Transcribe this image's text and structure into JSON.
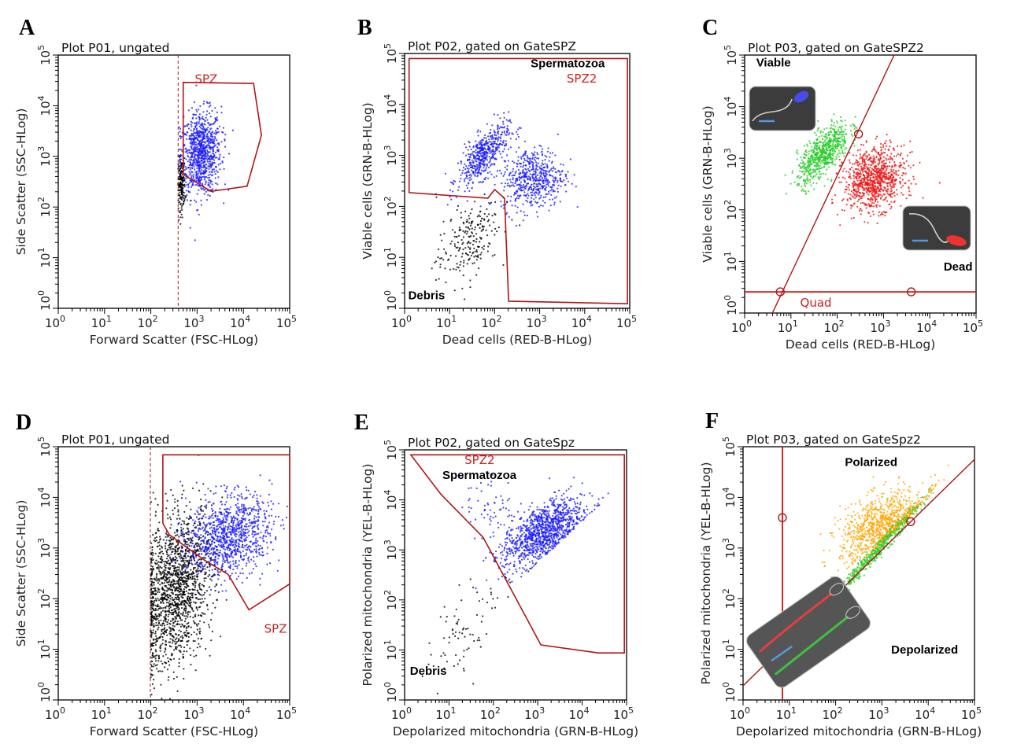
{
  "figure": {
    "panel_letters": [
      "A",
      "B",
      "C",
      "D",
      "E",
      "F"
    ]
  },
  "chart_data": [
    {
      "type": "scatter",
      "id": "A",
      "title": "Plot P01, ungated",
      "xlabel": "Forward Scatter (FSC-HLog)",
      "ylabel": "Side Scatter (SSC-HLog)",
      "xlim_log10": [
        0,
        5
      ],
      "ylim_log10": [
        0,
        5
      ],
      "tick_base": "10",
      "tick_exponents": [
        0,
        1,
        2,
        3,
        4,
        5
      ],
      "clusters": [
        {
          "color": "#1a1aff",
          "n": 900,
          "cx": 3.08,
          "cy": 3.05,
          "sx": 0.22,
          "sy": 0.42,
          "rho": 0.1,
          "xmin": 2.62
        },
        {
          "color": "#000000",
          "n": 160,
          "cx": 2.66,
          "cy": 2.45,
          "sx": 0.04,
          "sy": 0.25,
          "rho": 0,
          "xmin": 2.59
        }
      ],
      "gates": [
        {
          "name": "SPZ",
          "points": [
            [
              2.7,
              4.46
            ],
            [
              4.22,
              4.44
            ],
            [
              4.39,
              3.42
            ],
            [
              4.08,
              2.41
            ],
            [
              3.3,
              2.31
            ],
            [
              2.7,
              2.64
            ]
          ]
        }
      ],
      "vlines_dashed": [
        2.59
      ],
      "gate_labels": [
        {
          "text": "SPZ",
          "x": 2.95,
          "y": 4.45,
          "kind": "gate"
        }
      ]
    },
    {
      "type": "scatter",
      "id": "B",
      "title": "Plot P02, gated on GateSPZ",
      "xlabel": "Dead cells (RED-B-HLog)",
      "ylabel": "Viable cells (GRN-B-HLog)",
      "xlim_log10": [
        0,
        5
      ],
      "ylim_log10": [
        0,
        5
      ],
      "tick_base": "10",
      "tick_exponents": [
        0,
        1,
        2,
        3,
        4,
        5
      ],
      "clusters": [
        {
          "color": "#1a1aff",
          "n": 500,
          "cx": 1.75,
          "cy": 3.0,
          "sx": 0.28,
          "sy": 0.3,
          "rho": 0.7
        },
        {
          "color": "#1a1aff",
          "n": 550,
          "cx": 2.85,
          "cy": 2.55,
          "sx": 0.35,
          "sy": 0.3,
          "rho": 0.1
        },
        {
          "color": "#000000",
          "n": 220,
          "cx": 1.4,
          "cy": 1.3,
          "sx": 0.35,
          "sy": 0.42,
          "rho": 0.5
        }
      ],
      "gates": [
        {
          "name": "SPZ2",
          "points": [
            [
              0.1,
              4.9
            ],
            [
              4.95,
              4.9
            ],
            [
              4.95,
              0.09
            ],
            [
              2.31,
              0.14
            ],
            [
              2.22,
              2.16
            ],
            [
              2.0,
              2.33
            ],
            [
              1.85,
              2.16
            ],
            [
              0.1,
              2.27
            ]
          ]
        }
      ],
      "gate_labels": [
        {
          "text": "Spermatozoa",
          "x": 2.8,
          "y": 4.73,
          "kind": "bold"
        },
        {
          "text": "SPZ2",
          "x": 3.6,
          "y": 4.43,
          "kind": "gate"
        },
        {
          "text": "Debris",
          "x": 0.08,
          "y": 0.18,
          "kind": "bold"
        }
      ]
    },
    {
      "type": "scatter",
      "id": "C",
      "title": "Plot P03, gated on GateSPZ2",
      "xlabel": "Dead cells (RED-B-HLog)",
      "ylabel": "Viable cells (GRN-B-HLog)",
      "xlim_log10": [
        0,
        5
      ],
      "ylim_log10": [
        0,
        5
      ],
      "tick_base": "10",
      "tick_exponents": [
        0,
        1,
        2,
        3,
        4,
        5
      ],
      "clusters": [
        {
          "color": "#22cc22",
          "n": 650,
          "cx": 1.7,
          "cy": 3.1,
          "sx": 0.28,
          "sy": 0.3,
          "rho": 0.7
        },
        {
          "color": "#ee1111",
          "n": 900,
          "cx": 2.8,
          "cy": 2.6,
          "sx": 0.33,
          "sy": 0.3,
          "rho": 0.15
        }
      ],
      "quadrant": {
        "line_from": [
          0.6,
          0
        ],
        "line_to": [
          3.23,
          5
        ],
        "h_y": 0.41,
        "markers": [
          [
            0.77,
            0.41
          ],
          [
            2.46,
            3.47
          ],
          [
            3.6,
            0.41
          ]
        ]
      },
      "gate_labels": [
        {
          "text": "Viable",
          "x": 0.25,
          "y": 4.78,
          "kind": "bold"
        },
        {
          "text": "Dead",
          "x": 4.3,
          "y": 0.82,
          "kind": "bold"
        },
        {
          "text": "Quad",
          "x": 1.2,
          "y": 0.12,
          "kind": "gate"
        }
      ],
      "insets": [
        "viable-sperm-image-blue",
        "dead-sperm-image-red"
      ]
    },
    {
      "type": "scatter",
      "id": "D",
      "title": "Plot P01, ungated",
      "xlabel": "Forward Scatter (FSC-HLog)",
      "ylabel": "Side Scatter (SSC-HLog)",
      "xlim_log10": [
        0,
        5
      ],
      "ylim_log10": [
        0,
        5
      ],
      "tick_base": "10",
      "tick_exponents": [
        0,
        1,
        2,
        3,
        4,
        5
      ],
      "clusters": [
        {
          "color": "#000000",
          "n": 1600,
          "cx": 2.55,
          "cy": 2.2,
          "sx": 0.4,
          "sy": 0.75,
          "rho": 0.3,
          "xmin": 2.0
        },
        {
          "color": "#1a1aff",
          "n": 1000,
          "cx": 3.7,
          "cy": 3.25,
          "sx": 0.45,
          "sy": 0.4,
          "rho": 0.2,
          "xmin": 2.3
        }
      ],
      "gates": [
        {
          "name": "SPZ",
          "points": [
            [
              2.26,
              4.84
            ],
            [
              5,
              4.84
            ],
            [
              5,
              2.29
            ],
            [
              4.12,
              1.78
            ],
            [
              3.67,
              2.48
            ],
            [
              3.16,
              2.76
            ],
            [
              2.4,
              3.26
            ],
            [
              2.26,
              3.49
            ]
          ]
        }
      ],
      "vlines_dashed": [
        1.99
      ],
      "gate_labels": [
        {
          "text": "SPZ",
          "x": 4.45,
          "y": 1.33,
          "kind": "gate"
        }
      ]
    },
    {
      "type": "scatter",
      "id": "E",
      "title": "Plot P02, gated on GateSpz",
      "xlabel": "Depolarized mitochondria (GRN-B-HLog)",
      "ylabel": "Polarized mitochondria (YEL-B-HLog)",
      "xlim_log10": [
        0,
        5
      ],
      "ylim_log10": [
        0,
        5
      ],
      "tick_base": "10",
      "tick_exponents": [
        0,
        1,
        2,
        3,
        4,
        5
      ],
      "clusters": [
        {
          "color": "#1a1aff",
          "n": 1100,
          "cx": 3.1,
          "cy": 3.35,
          "sx": 0.45,
          "sy": 0.35,
          "rho": 0.6,
          "above": [
            0.83,
            0.25
          ]
        },
        {
          "color": "#1a1aff",
          "n": 60,
          "cx": 1.9,
          "cy": 3.9,
          "sx": 0.3,
          "sy": 0.3,
          "rho": 0
        },
        {
          "color": "#000000",
          "n": 80,
          "cx": 1.5,
          "cy": 1.6,
          "sx": 0.5,
          "sy": 0.6,
          "rho": 0.7
        }
      ],
      "gates": [
        {
          "name": "SPZ2",
          "points": [
            [
              0.14,
              4.9
            ],
            [
              4.95,
              4.9
            ],
            [
              4.95,
              0.94
            ],
            [
              4.36,
              0.94
            ],
            [
              3.07,
              1.1
            ],
            [
              1.77,
              3.25
            ],
            [
              0.82,
              4.11
            ]
          ]
        }
      ],
      "gate_labels": [
        {
          "text": "SPZ2",
          "x": 1.35,
          "y": 4.72,
          "kind": "gate"
        },
        {
          "text": "Spermatozoa",
          "x": 0.85,
          "y": 4.42,
          "kind": "bold"
        },
        {
          "text": "Debris",
          "x": 0.12,
          "y": 0.5,
          "kind": "bold"
        }
      ]
    },
    {
      "type": "scatter",
      "id": "F",
      "title": "Plot P03, gated on GateSpz2",
      "xlabel": "Depolarized mitochondria (GRN-B-HLog)",
      "ylabel": "Polarized mitochondria (YEL-B-HLog)",
      "xlim_log10": [
        0,
        5
      ],
      "ylim_log10": [
        0,
        5
      ],
      "tick_base": "10",
      "tick_exponents": [
        0,
        1,
        2,
        3,
        4,
        5
      ],
      "clusters": [
        {
          "color": "#ffa500",
          "n": 1000,
          "cx": 3.0,
          "cy": 3.4,
          "sx": 0.45,
          "sy": 0.35,
          "rho": 0.4,
          "above": [
            0.894,
            0.4
          ]
        },
        {
          "color": "#33cc33",
          "n": 450,
          "cx": 2.9,
          "cy": 2.95,
          "sx": 0.45,
          "sy": 0.45,
          "rho": 0.985
        }
      ],
      "quadrant": {
        "line_from": [
          0,
          0.28
        ],
        "line_to": [
          5,
          4.75
        ],
        "v_x": 0.85,
        "markers": [
          [
            0.85,
            3.6
          ],
          [
            3.62,
            3.52
          ]
        ]
      },
      "gate_labels": [
        {
          "text": "Polarized",
          "x": 2.2,
          "y": 4.62,
          "kind": "bold"
        },
        {
          "text": "Depolarized",
          "x": 3.2,
          "y": 0.92,
          "kind": "bold"
        }
      ],
      "insets": [
        "polarized-depolarized-sperm-image"
      ]
    }
  ]
}
